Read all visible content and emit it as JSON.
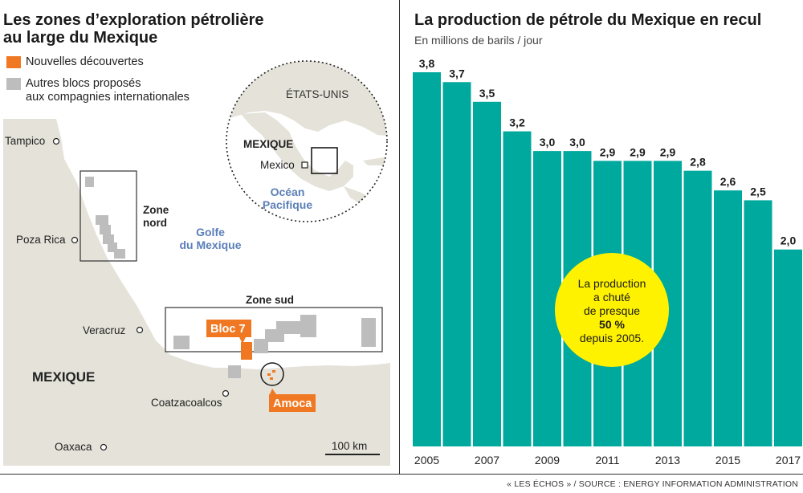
{
  "left": {
    "title_line1": "Les zones d’exploration pétrolière",
    "title_line2": "au large du Mexique",
    "legend": [
      {
        "label_lines": [
          "Nouvelles découvertes"
        ],
        "color": "#f07823"
      },
      {
        "label_lines": [
          "Autres blocs proposés",
          "aux compagnies internationales"
        ],
        "color": "#bdbdbd"
      }
    ],
    "map": {
      "cities": [
        "Tampico",
        "Poza Rica",
        "Veracruz",
        "Coatzacoalcos",
        "Oaxaca"
      ],
      "country_label": "MEXIQUE",
      "gulf_label_lines": [
        "Golfe",
        "du Mexique"
      ],
      "zone_north_lines": [
        "Zone",
        "nord"
      ],
      "zone_south": "Zone sud",
      "bloc_label": "Bloc 7",
      "amoca_label": "Amoca",
      "scale_label": "100 km",
      "inset": {
        "usa_label": "ÉTATS-UNIS",
        "mexico_label": "MEXIQUE",
        "capital_label": "Mexico",
        "ocean_label_lines": [
          "Océan",
          "Pacifique"
        ]
      },
      "colors": {
        "land": "#e4e2d9",
        "sea": "#ffffff",
        "blocks": "#bdbdbd",
        "discovery": "#f07823",
        "water_label": "#5b7fb8"
      }
    }
  },
  "chart_data": {
    "type": "bar",
    "title": "La production de pétrole du Mexique en recul",
    "subtitle": "En millions de barils / jour",
    "categories": [
      "2005",
      "2006",
      "2007",
      "2008",
      "2009",
      "2010",
      "2011",
      "2012",
      "2013",
      "2014",
      "2015",
      "2016",
      "2017"
    ],
    "values": [
      3.8,
      3.7,
      3.5,
      3.2,
      3.0,
      3.0,
      2.9,
      2.9,
      2.9,
      2.8,
      2.6,
      2.5,
      2.0
    ],
    "value_labels": [
      "3,8",
      "3,7",
      "3,5",
      "3,2",
      "3,0",
      "3,0",
      "2,9",
      "2,9",
      "2,9",
      "2,8",
      "2,6",
      "2,5",
      "2,0"
    ],
    "tick_labels": [
      "2005",
      "",
      "2007",
      "",
      "2009",
      "",
      "2011",
      "",
      "2013",
      "",
      "2015",
      "",
      "2017"
    ],
    "ylim": [
      0,
      3.8
    ],
    "bar_color": "#00a99d",
    "annotation": {
      "lines": [
        "La production",
        "a chuté",
        "de presque",
        "50 %",
        "depuis 2005."
      ],
      "bold_line": 3,
      "color": "#fff200"
    }
  },
  "source": "« LES ÉCHOS » / SOURCE : ENERGY INFORMATION ADMINISTRATION"
}
